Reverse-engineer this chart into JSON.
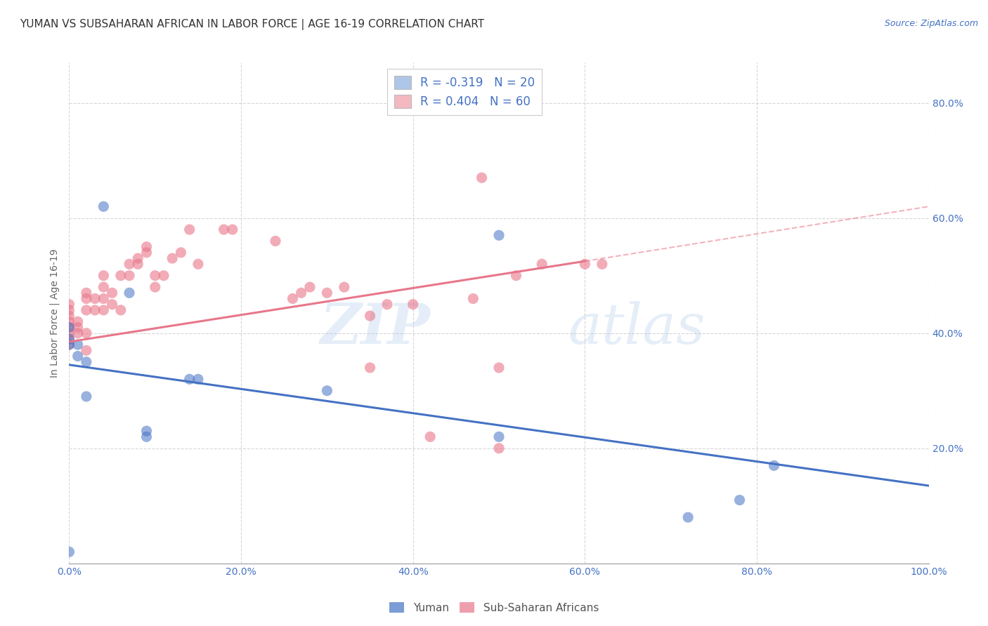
{
  "title": "YUMAN VS SUBSAHARAN AFRICAN IN LABOR FORCE | AGE 16-19 CORRELATION CHART",
  "source": "Source: ZipAtlas.com",
  "ylabel": "In Labor Force | Age 16-19",
  "legend_entries": [
    {
      "label": "R = -0.319   N = 20",
      "color": "#aec6e8"
    },
    {
      "label": "R = 0.404   N = 60",
      "color": "#f4b8c1"
    }
  ],
  "watermark_zip": "ZIP",
  "watermark_atlas": "atlas",
  "blue_color": "#4472c4",
  "pink_color": "#e8768a",
  "blue_scatter": [
    [
      0.0,
      0.02
    ],
    [
      0.0,
      0.38
    ],
    [
      0.0,
      0.39
    ],
    [
      0.0,
      0.41
    ],
    [
      0.01,
      0.36
    ],
    [
      0.01,
      0.38
    ],
    [
      0.02,
      0.35
    ],
    [
      0.02,
      0.29
    ],
    [
      0.04,
      0.62
    ],
    [
      0.07,
      0.47
    ],
    [
      0.09,
      0.22
    ],
    [
      0.09,
      0.23
    ],
    [
      0.14,
      0.32
    ],
    [
      0.15,
      0.32
    ],
    [
      0.3,
      0.3
    ],
    [
      0.5,
      0.22
    ],
    [
      0.5,
      0.57
    ],
    [
      0.72,
      0.08
    ],
    [
      0.78,
      0.11
    ],
    [
      0.82,
      0.17
    ]
  ],
  "pink_scatter": [
    [
      0.0,
      0.38
    ],
    [
      0.0,
      0.39
    ],
    [
      0.0,
      0.4
    ],
    [
      0.0,
      0.41
    ],
    [
      0.0,
      0.42
    ],
    [
      0.0,
      0.43
    ],
    [
      0.0,
      0.44
    ],
    [
      0.0,
      0.45
    ],
    [
      0.01,
      0.4
    ],
    [
      0.01,
      0.41
    ],
    [
      0.01,
      0.42
    ],
    [
      0.02,
      0.37
    ],
    [
      0.02,
      0.4
    ],
    [
      0.02,
      0.44
    ],
    [
      0.02,
      0.46
    ],
    [
      0.02,
      0.47
    ],
    [
      0.03,
      0.44
    ],
    [
      0.03,
      0.46
    ],
    [
      0.04,
      0.44
    ],
    [
      0.04,
      0.46
    ],
    [
      0.04,
      0.48
    ],
    [
      0.04,
      0.5
    ],
    [
      0.05,
      0.45
    ],
    [
      0.05,
      0.47
    ],
    [
      0.06,
      0.44
    ],
    [
      0.06,
      0.5
    ],
    [
      0.07,
      0.5
    ],
    [
      0.07,
      0.52
    ],
    [
      0.08,
      0.52
    ],
    [
      0.08,
      0.53
    ],
    [
      0.09,
      0.54
    ],
    [
      0.09,
      0.55
    ],
    [
      0.1,
      0.48
    ],
    [
      0.1,
      0.5
    ],
    [
      0.11,
      0.5
    ],
    [
      0.12,
      0.53
    ],
    [
      0.13,
      0.54
    ],
    [
      0.14,
      0.58
    ],
    [
      0.15,
      0.52
    ],
    [
      0.18,
      0.58
    ],
    [
      0.19,
      0.58
    ],
    [
      0.24,
      0.56
    ],
    [
      0.26,
      0.46
    ],
    [
      0.27,
      0.47
    ],
    [
      0.28,
      0.48
    ],
    [
      0.3,
      0.47
    ],
    [
      0.32,
      0.48
    ],
    [
      0.35,
      0.43
    ],
    [
      0.35,
      0.34
    ],
    [
      0.37,
      0.45
    ],
    [
      0.4,
      0.45
    ],
    [
      0.42,
      0.22
    ],
    [
      0.47,
      0.46
    ],
    [
      0.48,
      0.67
    ],
    [
      0.5,
      0.2
    ],
    [
      0.5,
      0.34
    ],
    [
      0.52,
      0.5
    ],
    [
      0.55,
      0.52
    ],
    [
      0.6,
      0.52
    ],
    [
      0.62,
      0.52
    ]
  ],
  "blue_line": [
    [
      0.0,
      0.345
    ],
    [
      1.0,
      0.135
    ]
  ],
  "pink_line_solid": [
    [
      0.0,
      0.385
    ],
    [
      0.6,
      0.525
    ]
  ],
  "pink_line_dashed": [
    [
      0.6,
      0.525
    ],
    [
      1.0,
      0.62
    ]
  ],
  "xlim": [
    0.0,
    1.0
  ],
  "ylim": [
    0.0,
    0.87
  ],
  "ytick_vals": [
    0.2,
    0.4,
    0.6,
    0.8
  ],
  "xtick_vals": [
    0.0,
    0.2,
    0.4,
    0.6,
    0.8,
    1.0
  ],
  "grid_color": "#cccccc",
  "background_color": "#ffffff",
  "title_fontsize": 11,
  "source_fontsize": 9,
  "tick_color": "#4472c4"
}
